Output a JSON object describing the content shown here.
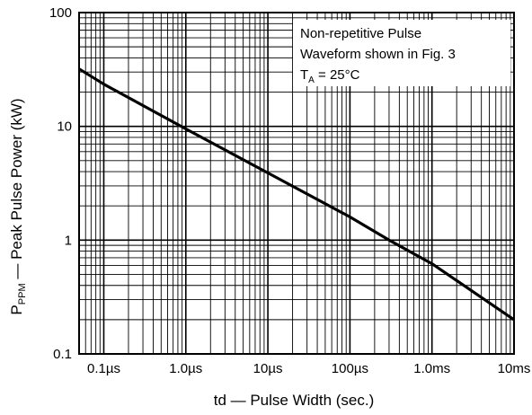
{
  "chart_data": {
    "type": "line",
    "x_scale": "log",
    "y_scale": "log",
    "xlim": [
      5e-08,
      0.01
    ],
    "ylim": [
      0.1,
      100
    ],
    "grid": true,
    "xlabel": "td — Pulse Width (sec.)",
    "ylabel": {
      "main": "P",
      "subscript": "PPM",
      "rest": " — Peak Pulse Power (kW)"
    },
    "x_ticks": [
      {
        "value": 1e-07,
        "label": "0.1µs"
      },
      {
        "value": 1e-06,
        "label": "1.0µs"
      },
      {
        "value": 1e-05,
        "label": "10µs"
      },
      {
        "value": 0.0001,
        "label": "100µs"
      },
      {
        "value": 0.001,
        "label": "1.0ms"
      },
      {
        "value": 0.01,
        "label": "10ms"
      }
    ],
    "y_ticks": [
      {
        "value": 0.1,
        "label": "0.1"
      },
      {
        "value": 1,
        "label": "1"
      },
      {
        "value": 10,
        "label": "10"
      },
      {
        "value": 100,
        "label": "100"
      }
    ],
    "series": [
      {
        "x": [
          5e-08,
          1e-07,
          1e-06,
          1e-05,
          0.0001,
          0.0003,
          0.001,
          0.01
        ],
        "y": [
          32,
          23.5,
          9.5,
          3.9,
          1.6,
          1.0,
          0.62,
          0.2
        ]
      }
    ],
    "annotation": {
      "lines": [
        "Non-repetitive Pulse",
        "Waveform shown in Fig. 3"
      ],
      "condition": {
        "main": "T",
        "subscript": "A",
        "rest": " = 25°C"
      }
    },
    "line_color": "#000000"
  }
}
